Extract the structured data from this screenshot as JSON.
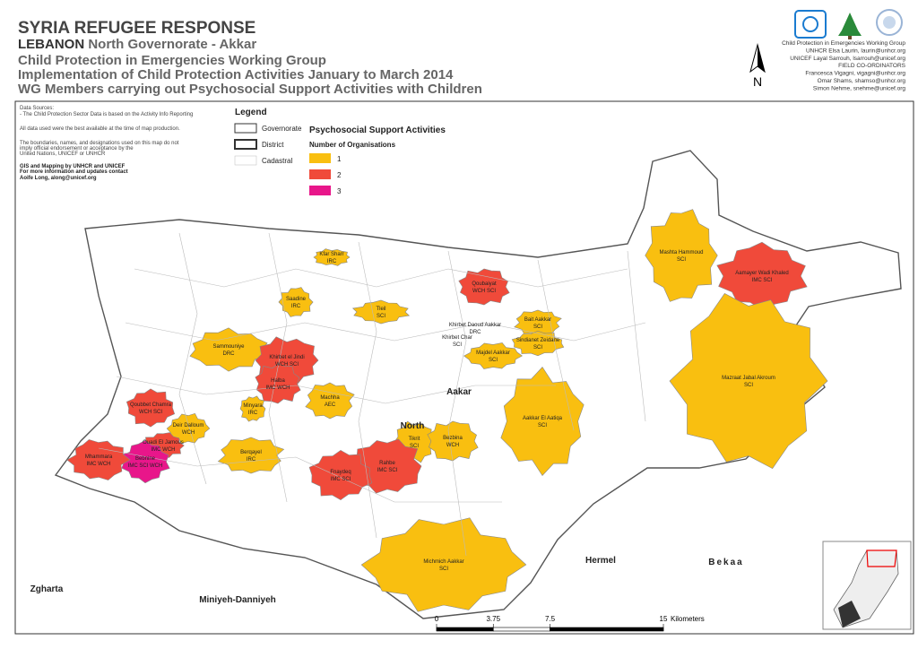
{
  "header": {
    "title": "SYRIA REFUGEE RESPONSE",
    "country": "LEBANON",
    "area": "North Governorate - Akkar",
    "lines": [
      "Child Protection in Emergencies Working Group",
      "Implementation of Child Protection Activities January to March 2014",
      "WG Members carrying out Psychosocial Support Activities with Children"
    ]
  },
  "north_arrow": "N",
  "contacts": [
    "Child Protection in Emergencies Working Group",
    "UNHCR Elsa Laurin, laurin@unhcr.org",
    "UNICEF Layal Sarrouh, lsarrouh@unicef.org",
    "FIELD CO-ORDINATORS",
    "Francesca Vigagni, vigagni@unhcr.org",
    "Omar Shams, shamso@unhcr.org",
    "Simon Nehme, snehme@unicef.org"
  ],
  "sources": [
    "Data Sources:",
    "- The Child Protection Sector Data is based on the Activity Info Reporting",
    "All data used were the best available at the time of map production.",
    "The boundaries, names, and designations used on this map do not",
    "imply official endorsement or acceptance by the",
    "United Nations, UNICEF or UNHCR",
    "GIS and Mapping by UNHCR and UNICEF",
    "For more information and updates contact",
    "Aoife Long, along@unicef.org"
  ],
  "legend": {
    "title": "Legend",
    "boundaries": [
      "Governorate",
      "District",
      "Cadastral"
    ],
    "activity": "Psychosocial Support Activities",
    "count_title": "Number of Organisations",
    "classes": [
      {
        "label": "1",
        "color": "#f9bf10"
      },
      {
        "label": "2",
        "color": "#f04a3a"
      },
      {
        "label": "3",
        "color": "#e8168a"
      }
    ]
  },
  "places": [
    {
      "name": "Kfar Sharr",
      "orgs": "IRC",
      "color": "#f9bf10"
    },
    {
      "name": "Qoubaiyat",
      "orgs": "WCH SCI",
      "color": "#f04a3a"
    },
    {
      "name": "Saadine",
      "orgs": "IRC",
      "color": "#f9bf10"
    },
    {
      "name": "Tleil",
      "orgs": "SCI",
      "color": "#f9bf10"
    },
    {
      "name": "Khirbet Daoud Aakkar",
      "orgs": "DRC",
      "color": "#ffffff"
    },
    {
      "name": "Bait Aakkar",
      "orgs": "SCI",
      "color": "#f9bf10"
    },
    {
      "name": "Khirbet Char",
      "orgs": "SCI",
      "color": "#ffffff"
    },
    {
      "name": "Sindianet Zeidane",
      "orgs": "SCI",
      "color": "#f9bf10"
    },
    {
      "name": "Majdel Aakkar",
      "orgs": "SCI",
      "color": "#f9bf10"
    },
    {
      "name": "Sammouniye",
      "orgs": "DRC",
      "color": "#f9bf10"
    },
    {
      "name": "Khirbet el Jindi",
      "orgs": "WCH SCI",
      "color": "#f04a3a"
    },
    {
      "name": "Halba",
      "orgs": "IMC WCH",
      "color": "#f04a3a"
    },
    {
      "name": "Mashta Hammoud",
      "orgs": "SCI",
      "color": "#f9bf10"
    },
    {
      "name": "Aamayer Wadi Khaled",
      "orgs": "IMC SCI",
      "color": "#f04a3a"
    },
    {
      "name": "Mazraat Jabal Akroum",
      "orgs": "SCI",
      "color": "#f9bf10"
    },
    {
      "name": "Machha",
      "orgs": "AEC",
      "color": "#f9bf10"
    },
    {
      "name": "Minyara",
      "orgs": "IRC",
      "color": "#f9bf10"
    },
    {
      "name": "Qoubbet Chamra",
      "orgs": "WCH SCI",
      "color": "#f04a3a"
    },
    {
      "name": "Deir Dalloum",
      "orgs": "WCH",
      "color": "#f9bf10"
    },
    {
      "name": "Aakkar El Aatiqa",
      "orgs": "SCI",
      "color": "#f9bf10"
    },
    {
      "name": "Tikrit",
      "orgs": "SCI",
      "color": "#f9bf10"
    },
    {
      "name": "Bezbina",
      "orgs": "WCH",
      "color": "#f9bf10"
    },
    {
      "name": "Ouadi El Jamous",
      "orgs": "IMC WCH",
      "color": "#f04a3a"
    },
    {
      "name": "Bebnine",
      "orgs": "IMC SCI WCH",
      "color": "#e8168a"
    },
    {
      "name": "Mhammara",
      "orgs": "IMC WCH",
      "color": "#f04a3a"
    },
    {
      "name": "Berqayel",
      "orgs": "IRC",
      "color": "#f9bf10"
    },
    {
      "name": "Rahbe",
      "orgs": "IMC SCI",
      "color": "#f04a3a"
    },
    {
      "name": "Fnaydeq",
      "orgs": "IMC SCI",
      "color": "#f04a3a"
    },
    {
      "name": "Michmich Aakkar",
      "orgs": "SCI",
      "color": "#f9bf10"
    }
  ],
  "regions": [
    "Aakar",
    "North",
    "Hermel",
    "Bekaa",
    "Zgharta",
    "Miniyeh-Danniyeh"
  ],
  "scale": {
    "ticks": [
      0,
      3.75,
      7.5,
      15
    ],
    "unit": "Kilometers"
  }
}
